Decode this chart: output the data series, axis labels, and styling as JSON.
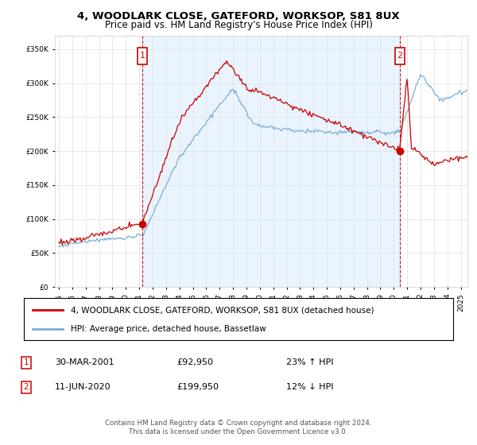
{
  "title": "4, WOODLARK CLOSE, GATEFORD, WORKSOP, S81 8UX",
  "subtitle": "Price paid vs. HM Land Registry's House Price Index (HPI)",
  "legend_line1": "4, WOODLARK CLOSE, GATEFORD, WORKSOP, S81 8UX (detached house)",
  "legend_line2": "HPI: Average price, detached house, Bassetlaw",
  "sale1_date": "30-MAR-2001",
  "sale1_price": "£92,950",
  "sale1_hpi": "23% ↑ HPI",
  "sale1_year": 2001.25,
  "sale1_value": 92950,
  "sale2_date": "11-JUN-2020",
  "sale2_price": "£199,950",
  "sale2_hpi": "12% ↓ HPI",
  "sale2_year": 2020.45,
  "sale2_value": 199950,
  "footer": "Contains HM Land Registry data © Crown copyright and database right 2024.\nThis data is licensed under the Open Government Licence v3.0.",
  "hpi_color": "#7bafd4",
  "sale_color": "#cc0000",
  "shade_color": "#ddeeff",
  "ylim": [
    0,
    370000
  ],
  "xlim_start": 1994.7,
  "xlim_end": 2025.5
}
